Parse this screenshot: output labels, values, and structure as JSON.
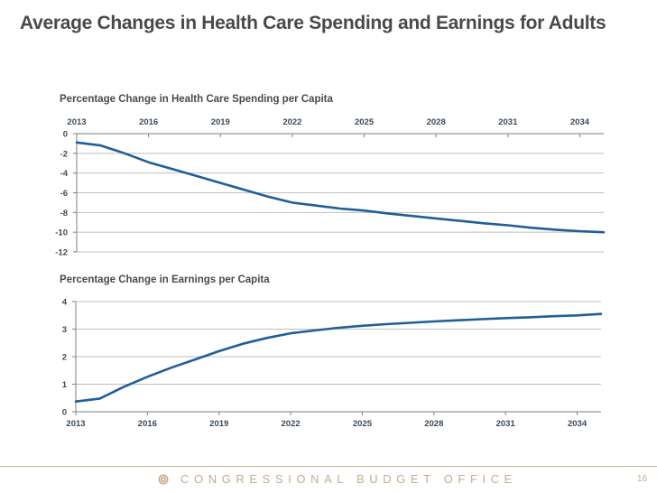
{
  "slide": {
    "title": "Average Changes in Health Care Spending and Earnings for Adults",
    "footer_text": "CONGRESSIONAL BUDGET OFFICE",
    "page_number": "16",
    "colors": {
      "line": "#1f5f99",
      "gridline": "#bfbfbf",
      "axis": "#7f7f7f",
      "footer": "#c5ab8b"
    }
  },
  "chart_data": [
    {
      "type": "line",
      "title": "Percentage Change in Health Care Spending per Capita",
      "xlabel": "",
      "ylabel": "",
      "x_tick_position": "top",
      "x": [
        2013,
        2014,
        2015,
        2016,
        2017,
        2018,
        2019,
        2020,
        2021,
        2022,
        2023,
        2024,
        2025,
        2026,
        2027,
        2028,
        2029,
        2030,
        2031,
        2032,
        2033,
        2034,
        2035
      ],
      "x_ticks": [
        "2013",
        "2016",
        "2019",
        "2022",
        "2025",
        "2028",
        "2031",
        "2034"
      ],
      "y_ticks": [
        "0",
        "-2",
        "-4",
        "-6",
        "-8",
        "-10",
        "-12"
      ],
      "ylim": [
        -12,
        0
      ],
      "xlim": [
        2013,
        2035
      ],
      "grid": true,
      "series": [
        {
          "name": "Health Care Spending per Capita",
          "values": [
            -0.9,
            -1.2,
            -2.0,
            -2.9,
            -3.6,
            -4.3,
            -5.0,
            -5.7,
            -6.4,
            -7.0,
            -7.3,
            -7.6,
            -7.8,
            -8.1,
            -8.35,
            -8.6,
            -8.85,
            -9.1,
            -9.3,
            -9.55,
            -9.75,
            -9.9,
            -10.0
          ]
        }
      ]
    },
    {
      "type": "line",
      "title": "Percentage Change in Earnings per Capita",
      "xlabel": "",
      "ylabel": "",
      "x_tick_position": "bottom",
      "x": [
        2013,
        2014,
        2015,
        2016,
        2017,
        2018,
        2019,
        2020,
        2021,
        2022,
        2023,
        2024,
        2025,
        2026,
        2027,
        2028,
        2029,
        2030,
        2031,
        2032,
        2033,
        2034,
        2035
      ],
      "x_ticks": [
        "2013",
        "2016",
        "2019",
        "2022",
        "2025",
        "2028",
        "2031",
        "2034"
      ],
      "y_ticks": [
        "0",
        "1",
        "2",
        "3",
        "4"
      ],
      "ylim": [
        0,
        4
      ],
      "xlim": [
        2013,
        2035
      ],
      "grid": true,
      "series": [
        {
          "name": "Earnings per Capita",
          "values": [
            0.37,
            0.48,
            0.9,
            1.27,
            1.6,
            1.9,
            2.2,
            2.47,
            2.68,
            2.85,
            2.95,
            3.05,
            3.12,
            3.18,
            3.23,
            3.28,
            3.32,
            3.36,
            3.4,
            3.43,
            3.47,
            3.5,
            3.55
          ]
        }
      ]
    }
  ]
}
